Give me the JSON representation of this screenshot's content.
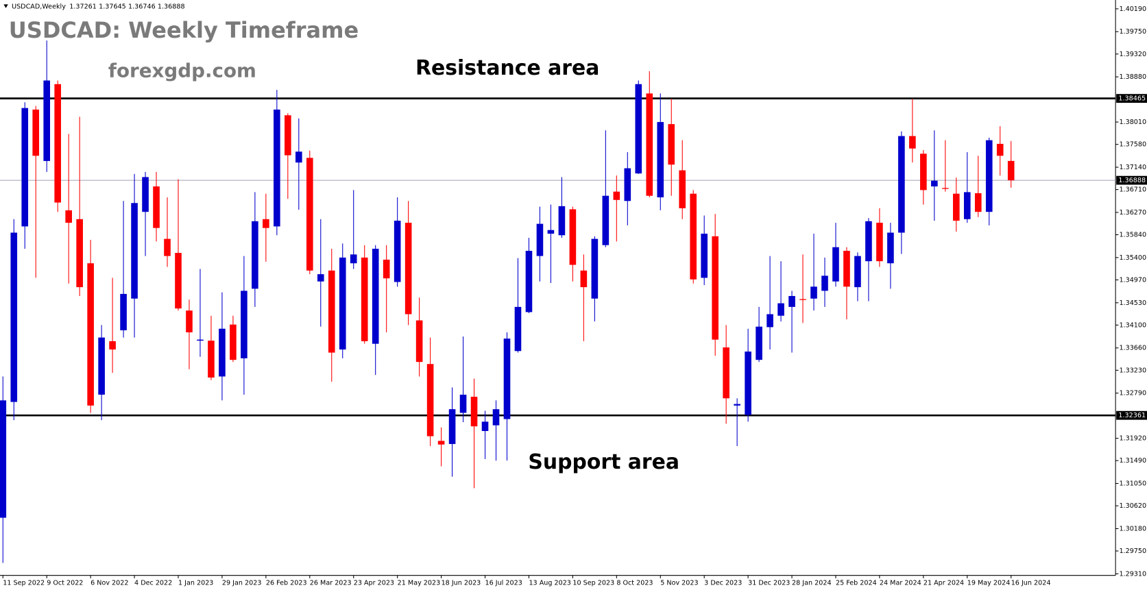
{
  "chart_data": {
    "type": "candlestick",
    "symbol": "USDCAD,Weekly",
    "title": "USDCAD: Weekly Timeframe",
    "subtitle": "forexgdp.com",
    "annotations": [
      "Resistance area",
      "Support area"
    ],
    "up_color": "#0000cd",
    "down_color": "#ff0000",
    "grid": false,
    "ylim": [
      1.2928,
      1.4036
    ],
    "yticks": [
      {
        "value": 1.4019,
        "label": "1.40190"
      },
      {
        "value": 1.3975,
        "label": "1.39750"
      },
      {
        "value": 1.3932,
        "label": "1.39320"
      },
      {
        "value": 1.3888,
        "label": "1.38880"
      },
      {
        "value": 1.3801,
        "label": "1.38010"
      },
      {
        "value": 1.3758,
        "label": "1.37580"
      },
      {
        "value": 1.3714,
        "label": "1.37140"
      },
      {
        "value": 1.3671,
        "label": "1.36710"
      },
      {
        "value": 1.3627,
        "label": "1.36270"
      },
      {
        "value": 1.3584,
        "label": "1.35840"
      },
      {
        "value": 1.354,
        "label": "1.35400"
      },
      {
        "value": 1.3497,
        "label": "1.34970"
      },
      {
        "value": 1.3453,
        "label": "1.34530"
      },
      {
        "value": 1.341,
        "label": "1.34100"
      },
      {
        "value": 1.3366,
        "label": "1.33660"
      },
      {
        "value": 1.3323,
        "label": "1.33230"
      },
      {
        "value": 1.3279,
        "label": "1.32790"
      },
      {
        "value": 1.3192,
        "label": "1.31920"
      },
      {
        "value": 1.3149,
        "label": "1.31490"
      },
      {
        "value": 1.3105,
        "label": "1.31050"
      },
      {
        "value": 1.3062,
        "label": "1.30620"
      },
      {
        "value": 1.3018,
        "label": "1.30180"
      },
      {
        "value": 1.2975,
        "label": "1.29750"
      },
      {
        "value": 1.2931,
        "label": "1.29310"
      }
    ],
    "levels": [
      {
        "value": 1.38465,
        "color": "#000000"
      },
      {
        "value": 1.36888,
        "color": "#a0a0b4"
      },
      {
        "value": 1.32361,
        "color": "#000000"
      }
    ],
    "categories": [
      "11 Sep 2022",
      null,
      null,
      null,
      "9 Oct 2022",
      null,
      null,
      null,
      "6 Nov 2022",
      null,
      null,
      null,
      "4 Dec 2022",
      null,
      null,
      null,
      "1 Jan 2023",
      null,
      null,
      null,
      "29 Jan 2023",
      null,
      null,
      null,
      "26 Feb 2023",
      null,
      null,
      null,
      "26 Mar 2023",
      null,
      null,
      null,
      "23 Apr 2023",
      null,
      null,
      null,
      "21 May 2023",
      null,
      null,
      null,
      "18 Jun 2023",
      null,
      null,
      null,
      "16 Jul 2023",
      null,
      null,
      null,
      "13 Aug 2023",
      null,
      null,
      null,
      "10 Sep 2023",
      null,
      null,
      null,
      "8 Oct 2023",
      null,
      null,
      null,
      "5 Nov 2023",
      null,
      null,
      null,
      "3 Dec 2023",
      null,
      null,
      null,
      "31 Dec 2023",
      null,
      null,
      null,
      "28 Jan 2024",
      null,
      null,
      null,
      "25 Feb 2024",
      null,
      null,
      null,
      "24 Mar 2024",
      null,
      null,
      null,
      "21 Apr 2024",
      null,
      null,
      null,
      "19 May 2024",
      null,
      null,
      null,
      "16 Jun 2024"
    ],
    "open": [
      1.3039,
      1.3262,
      1.36,
      1.3825,
      1.3726,
      1.3874,
      1.3631,
      1.3614,
      1.3529,
      1.3276,
      1.3379,
      1.34,
      1.3461,
      1.3628,
      1.3677,
      1.3576,
      1.3549,
      1.3438,
      1.338,
      1.338,
      1.3311,
      1.3411,
      1.3346,
      1.348,
      1.3614,
      1.36,
      1.3814,
      1.3723,
      1.3732,
      1.3494,
      1.3515,
      1.3363,
      1.3529,
      1.354,
      1.3374,
      1.3536,
      1.3493,
      1.3607,
      1.3419,
      1.3335,
      1.3187,
      1.3181,
      1.3241,
      1.3272,
      1.3206,
      1.3217,
      1.3229,
      1.336,
      1.3435,
      1.3543,
      1.3586,
      1.3583,
      1.3633,
      1.3515,
      1.3461,
      1.3564,
      1.3667,
      1.3649,
      1.3702,
      1.3856,
      1.3656,
      1.3797,
      1.3708,
      1.3663,
      1.3501,
      1.3581,
      1.3367,
      1.3255,
      1.3237,
      1.3343,
      1.3406,
      1.3428,
      1.3445,
      1.346,
      1.3461,
      1.3476,
      1.3494,
      1.3553,
      1.3483,
      1.3533,
      1.3607,
      1.3529,
      1.3588,
      1.3774,
      1.374,
      1.3677,
      1.3674,
      1.3663,
      1.3614,
      1.3664,
      1.3628,
      1.3759,
      1.37261
    ],
    "high": [
      1.3311,
      1.3614,
      1.3839,
      1.3832,
      1.3958,
      1.3881,
      1.3778,
      1.3811,
      1.3574,
      1.341,
      1.3501,
      1.3649,
      1.3701,
      1.3705,
      1.3705,
      1.3656,
      1.3691,
      1.3459,
      1.3518,
      1.3428,
      1.3473,
      1.3428,
      1.3543,
      1.3666,
      1.3663,
      1.3863,
      1.3818,
      1.3808,
      1.3746,
      1.3614,
      1.3557,
      1.3567,
      1.367,
      1.3564,
      1.3564,
      1.3564,
      1.3656,
      1.3649,
      1.3463,
      1.3386,
      1.3213,
      1.329,
      1.3388,
      1.3307,
      1.3245,
      1.3265,
      1.3396,
      1.3539,
      1.3578,
      1.3638,
      1.3642,
      1.3695,
      1.3638,
      1.3546,
      1.3581,
      1.3785,
      1.3698,
      1.3743,
      1.3881,
      1.3899,
      1.3856,
      1.3846,
      1.3766,
      1.367,
      1.3621,
      1.3624,
      1.341,
      1.3269,
      1.3403,
      1.3445,
      1.3543,
      1.3533,
      1.3476,
      1.3546,
      1.3586,
      1.354,
      1.3607,
      1.356,
      1.355,
      1.3616,
      1.3635,
      1.3607,
      1.3783,
      1.3846,
      1.3747,
      1.3785,
      1.3766,
      1.3694,
      1.3743,
      1.3736,
      1.3771,
      1.3793,
      1.37645
    ],
    "low": [
      1.2952,
      1.3227,
      1.3557,
      1.3501,
      1.3705,
      1.3628,
      1.349,
      1.3466,
      1.3241,
      1.3227,
      1.3318,
      1.3386,
      1.3386,
      1.3543,
      1.3571,
      1.3522,
      1.3438,
      1.3325,
      1.3349,
      1.3304,
      1.3265,
      1.3339,
      1.3276,
      1.3445,
      1.3532,
      1.3583,
      1.3653,
      1.3632,
      1.3508,
      1.3407,
      1.3301,
      1.3346,
      1.3518,
      1.3374,
      1.3314,
      1.3396,
      1.3484,
      1.341,
      1.3311,
      1.3177,
      1.3138,
      1.3118,
      1.3223,
      1.3096,
      1.3152,
      1.3149,
      1.3149,
      1.3357,
      1.3433,
      1.3494,
      1.3491,
      1.3578,
      1.3494,
      1.3379,
      1.3417,
      1.356,
      1.3571,
      1.3602,
      1.3701,
      1.3656,
      1.3631,
      1.3659,
      1.3614,
      1.349,
      1.3487,
      1.3351,
      1.322,
      1.3177,
      1.3224,
      1.3339,
      1.3363,
      1.3417,
      1.3357,
      1.3414,
      1.3438,
      1.3445,
      1.3484,
      1.3421,
      1.3456,
      1.3456,
      1.3522,
      1.348,
      1.3547,
      1.3723,
      1.3642,
      1.3611,
      1.3667,
      1.359,
      1.3607,
      1.3618,
      1.3602,
      1.3698,
      1.36746
    ],
    "close": [
      1.3265,
      1.3588,
      1.3828,
      1.3736,
      1.3881,
      1.3646,
      1.3607,
      1.3483,
      1.3255,
      1.3386,
      1.3363,
      1.347,
      1.3645,
      1.3695,
      1.3597,
      1.3543,
      1.3442,
      1.3396,
      1.3382,
      1.3309,
      1.3403,
      1.3343,
      1.3476,
      1.361,
      1.3597,
      1.3825,
      1.3737,
      1.3744,
      1.3515,
      1.3508,
      1.3357,
      1.354,
      1.3546,
      1.3379,
      1.3557,
      1.35,
      1.3611,
      1.3431,
      1.3339,
      1.3196,
      1.318,
      1.3248,
      1.3276,
      1.3215,
      1.3224,
      1.3248,
      1.3384,
      1.3445,
      1.3553,
      1.3605,
      1.3593,
      1.3639,
      1.3526,
      1.3483,
      1.3576,
      1.3659,
      1.3651,
      1.3712,
      1.3874,
      1.3659,
      1.3801,
      1.3719,
      1.3635,
      1.3498,
      1.3586,
      1.3382,
      1.3269,
      1.3258,
      1.3359,
      1.3407,
      1.3431,
      1.3452,
      1.3466,
      1.3459,
      1.3484,
      1.3505,
      1.356,
      1.3484,
      1.3543,
      1.361,
      1.3533,
      1.3588,
      1.3774,
      1.375,
      1.367,
      1.3688,
      1.3673,
      1.3611,
      1.3666,
      1.3628,
      1.3766,
      1.3736,
      1.36888
    ]
  }
}
